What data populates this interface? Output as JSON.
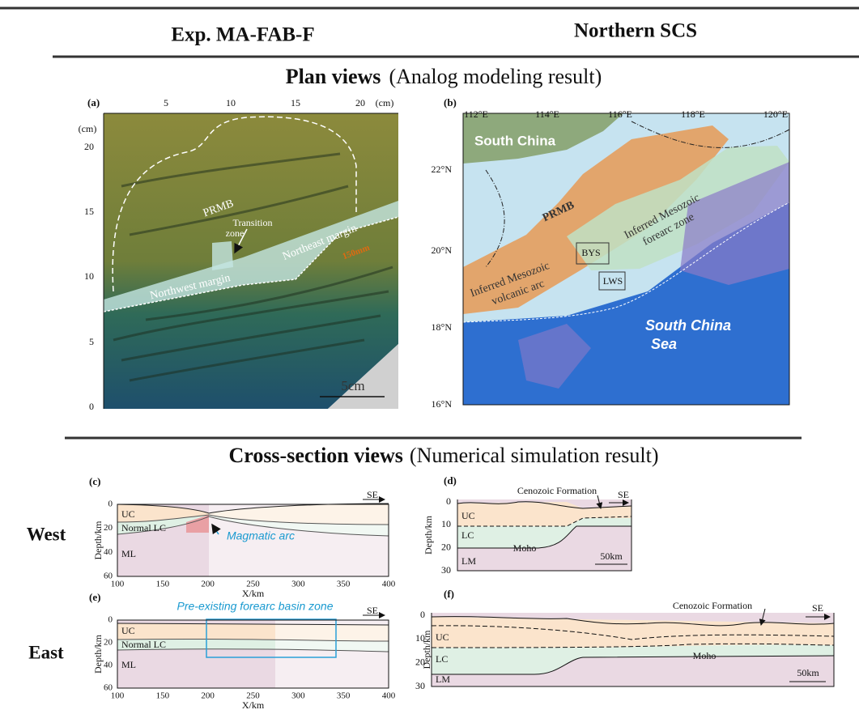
{
  "header": {
    "left": "Exp. MA-FAB-F",
    "right": "Northern SCS"
  },
  "plan_views": {
    "title": "Plan views",
    "subtitle": "(Analog modeling result)",
    "panel_a": {
      "label": "(a)",
      "top_ticks": [
        5,
        10,
        15,
        20
      ],
      "top_unit": "(cm)",
      "left_unit": "(cm)",
      "left_ticks": [
        20,
        15,
        10,
        5,
        0
      ],
      "annotations": {
        "prmb": "PRMB",
        "transition_1": "Transition",
        "transition_2": "zone",
        "northeast": "Northeast margin",
        "northwest": "Northwest margin",
        "thickness": "150mm",
        "scale": "5cm"
      }
    },
    "panel_b": {
      "label": "(b)",
      "top_ticks": [
        "112°E",
        "114°E",
        "116°E",
        "118°E",
        "120°E"
      ],
      "left_ticks": [
        "22°N",
        "20°N",
        "18°N",
        "16°N"
      ],
      "annotations": {
        "south_china": "South China",
        "prmb": "PRMB",
        "forearc_1": "Inferred Mesozoic",
        "forearc_2": "forearc zone",
        "bys": "BYS",
        "lws": "LWS",
        "arc_1": "Inferred Mesozoic",
        "arc_2": "volcanic arc",
        "sea_1": "South China",
        "sea_2": "Sea"
      }
    }
  },
  "cross_section_views": {
    "title": "Cross-section views",
    "subtitle": "(Numerical simulation result)",
    "row_west": "West",
    "row_east": "East",
    "panel_c": {
      "label": "(c)",
      "x_ticks": [
        100,
        150,
        200,
        250,
        300,
        350,
        400
      ],
      "y_ticks": [
        0,
        20,
        40,
        60
      ],
      "x_label": "X/km",
      "y_label": "Depth/km",
      "direction": "SE",
      "layers": [
        "UC",
        "Normal LC",
        "ML"
      ],
      "annotation": "Magmatic arc"
    },
    "panel_d": {
      "label": "(d)",
      "y_ticks": [
        0,
        10,
        20,
        30
      ],
      "y_label": "Depth/km",
      "direction": "SE",
      "formation": "Cenozoic Formation",
      "layers": [
        "UC",
        "LC",
        "LM"
      ],
      "moho": "Moho",
      "scale": "50km"
    },
    "panel_e": {
      "label": "(e)",
      "x_ticks": [
        100,
        150,
        200,
        250,
        300,
        350,
        400
      ],
      "y_ticks": [
        0,
        20,
        40,
        60
      ],
      "x_label": "X/km",
      "y_label": "Depth/km",
      "direction": "SE",
      "layers": [
        "UC",
        "Normal LC",
        "ML"
      ],
      "annotation": "Pre-existing forearc basin zone"
    },
    "panel_f": {
      "label": "(f)",
      "y_ticks": [
        0,
        10,
        20,
        30
      ],
      "y_label": "Depth/km",
      "direction": "SE",
      "formation": "Cenozoic Formation",
      "layers": [
        "UC",
        "LC",
        "LM"
      ],
      "moho": "Moho",
      "scale": "50km"
    }
  }
}
